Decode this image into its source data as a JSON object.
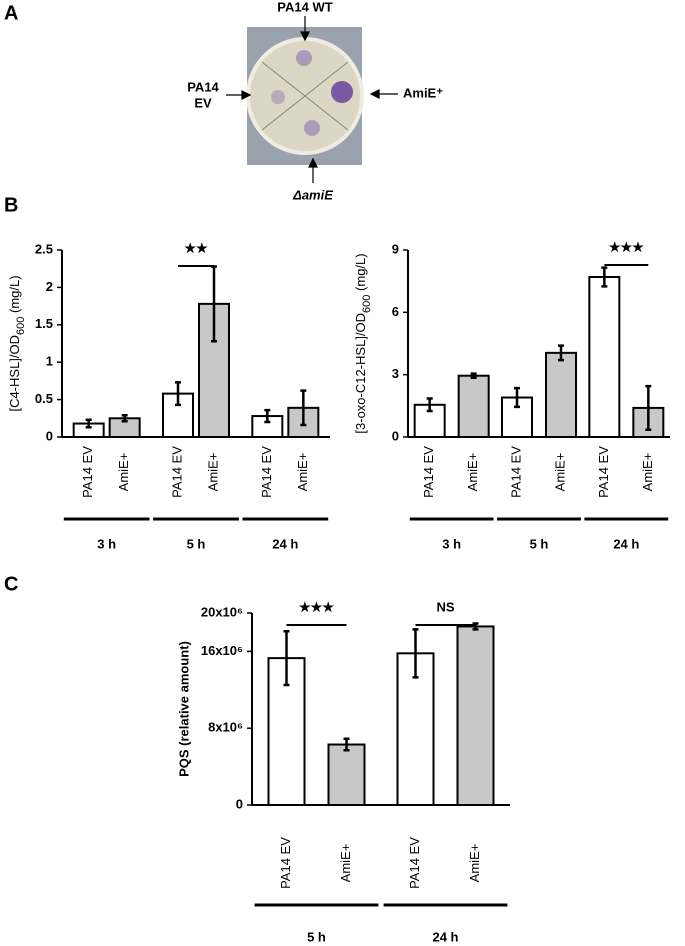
{
  "panels": [
    "A",
    "B",
    "C"
  ],
  "plate": {
    "top": "PA14 WT",
    "left": [
      "PA14",
      "EV"
    ],
    "right": "AmiE⁺",
    "bottom": "ΔamiE"
  },
  "chart_data": [
    {
      "type": "bar",
      "y_label": {
        "text": "[C4-HSL]/OD",
        "sub": "600",
        "after": " (mg/L)"
      },
      "categories": [
        "3 h",
        "5 h",
        "24 h"
      ],
      "series": [
        {
          "name": "PA14 EV",
          "color": "#ffffff",
          "values": [
            0.18,
            0.58,
            0.28
          ],
          "errors": [
            0.05,
            0.15,
            0.08
          ]
        },
        {
          "name": "AmiE+",
          "color": "#c8c8c8",
          "values": [
            0.25,
            1.78,
            0.39
          ],
          "errors": [
            0.04,
            0.5,
            0.23
          ]
        }
      ],
      "ylim": [
        0,
        2.5
      ],
      "yticks": [
        0,
        0.5,
        1,
        1.5,
        2,
        2.5
      ],
      "annotations": [
        {
          "text": "★★",
          "x": "5 h"
        }
      ]
    },
    {
      "type": "bar",
      "y_label": {
        "text": "[3-oxo-C12-HSL]/OD",
        "sub": "600",
        "after": " (mg/L)"
      },
      "categories": [
        "3 h",
        "5 h",
        "24 h"
      ],
      "series": [
        {
          "name": "PA14 EV",
          "color": "#ffffff",
          "values": [
            1.55,
            1.9,
            7.7
          ],
          "errors": [
            0.3,
            0.45,
            0.45
          ]
        },
        {
          "name": "AmiE+",
          "color": "#c8c8c8",
          "values": [
            2.95,
            4.05,
            1.4
          ],
          "errors": [
            0.1,
            0.35,
            1.05
          ]
        }
      ],
      "ylim": [
        0,
        9
      ],
      "yticks": [
        0,
        3,
        6,
        9
      ],
      "annotations": [
        {
          "text": "★★★",
          "x": "24 h"
        }
      ]
    },
    {
      "type": "bar",
      "y_label": "PQS (relative amount)",
      "categories": [
        "5 h",
        "24 h"
      ],
      "series": [
        {
          "name": "PA14 EV",
          "color": "#ffffff",
          "values": [
            15300000,
            15800000
          ],
          "errors": [
            2800000,
            2500000
          ]
        },
        {
          "name": "AmiE+",
          "color": "#c8c8c8",
          "values": [
            6300000,
            18600000
          ],
          "errors": [
            600000,
            300000
          ]
        }
      ],
      "ylim": [
        0,
        20000000
      ],
      "yticks": [
        0,
        {
          "value": 8000000,
          "label": "8x10⁶"
        },
        {
          "value": 16000000,
          "label": "16x10⁶"
        },
        {
          "value": 20000000,
          "label": "20x10⁶"
        }
      ],
      "annotations": [
        {
          "text": "★★★",
          "x": "5 h"
        },
        {
          "text": "NS",
          "x": "24 h"
        }
      ]
    }
  ]
}
